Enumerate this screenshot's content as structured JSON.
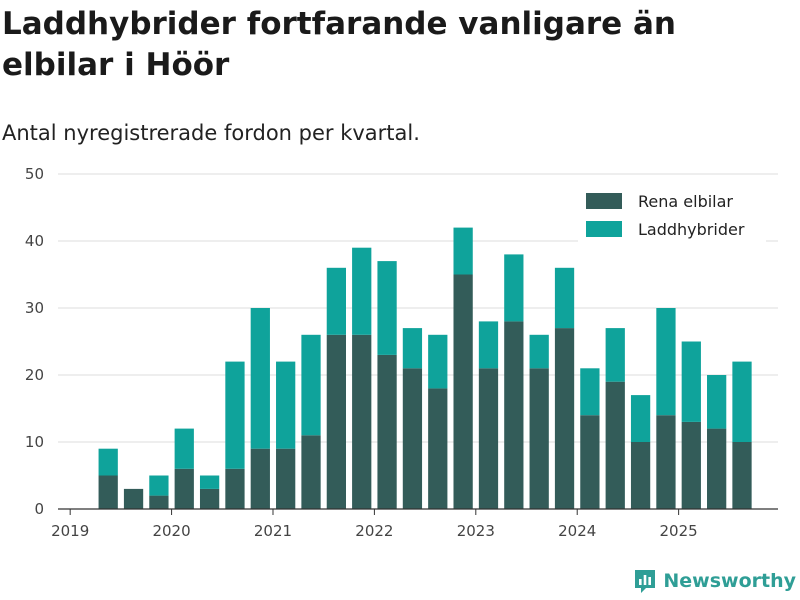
{
  "header": {
    "title": "Laddhybrider fortfarande vanligare än elbilar i Höör",
    "subtitle": "Antal nyregistrerade fordon per kvartal."
  },
  "brand": {
    "name": "Newsworthy",
    "icon": "newsworthy-logo-icon",
    "color": "#2f9e96"
  },
  "colors": {
    "elbilar": "#335c59",
    "laddhybrider": "#0fa39b",
    "grid": "#dddddd",
    "axis": "#333333"
  },
  "chart_data": {
    "type": "bar",
    "stacked": true,
    "ylim": [
      0,
      50
    ],
    "yticks": [
      "0",
      "10",
      "20",
      "30",
      "40",
      "50"
    ],
    "xticks": [
      "2019",
      "2020",
      "2021",
      "2022",
      "2023",
      "2024",
      "2025"
    ],
    "categories": [
      "2019 Q2",
      "2019 Q3",
      "2019 Q4",
      "2020 Q1",
      "2020 Q2",
      "2020 Q3",
      "2020 Q4",
      "2021 Q1",
      "2021 Q2",
      "2021 Q3",
      "2021 Q4",
      "2022 Q1",
      "2022 Q2",
      "2022 Q3",
      "2022 Q4",
      "2023 Q1",
      "2023 Q2",
      "2023 Q3",
      "2023 Q4",
      "2024 Q1",
      "2024 Q2",
      "2024 Q3",
      "2024 Q4",
      "2025 Q1",
      "2025 Q2",
      "2025 Q3"
    ],
    "legend_position": "top-right",
    "series": [
      {
        "name": "Rena elbilar",
        "color": "#335c59",
        "values": [
          5,
          3,
          2,
          6,
          3,
          6,
          9,
          9,
          11,
          26,
          26,
          23,
          21,
          18,
          35,
          21,
          28,
          21,
          27,
          14,
          19,
          10,
          14,
          13,
          12,
          10
        ]
      },
      {
        "name": "Laddhybrider",
        "color": "#0fa39b",
        "values": [
          4,
          0,
          3,
          6,
          2,
          16,
          21,
          13,
          15,
          10,
          13,
          14,
          6,
          8,
          7,
          7,
          10,
          5,
          9,
          7,
          8,
          7,
          16,
          12,
          8,
          12
        ]
      }
    ]
  }
}
